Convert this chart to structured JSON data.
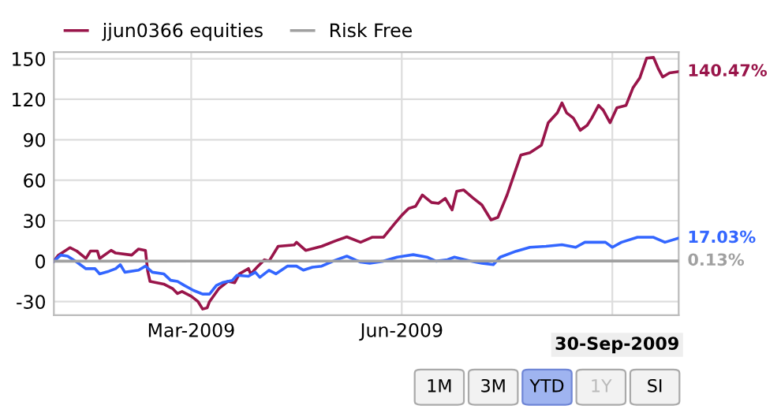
{
  "chart_data": {
    "type": "line",
    "xlim": [
      "2008-12-31",
      "2009-09-30"
    ],
    "ylim": [
      -40,
      155
    ],
    "xticks": [
      {
        "value": "2009-03-01",
        "label": "Mar-2009"
      },
      {
        "value": "2009-06-01",
        "label": "Jun-2009"
      },
      {
        "value": "2009-09-01",
        "label": null
      }
    ],
    "yticks": [
      -30,
      0,
      30,
      60,
      90,
      120,
      150
    ],
    "grid": true,
    "legend": "top",
    "line_style": "solid",
    "marker": "none",
    "series": [
      {
        "name": "jjun0366 equities",
        "color": "#99154a",
        "x": [
          "2008-12-31",
          "2009-01-02",
          "2009-01-07",
          "2009-01-10",
          "2009-01-14",
          "2009-01-16",
          "2009-01-19",
          "2009-01-20",
          "2009-01-25",
          "2009-01-27",
          "2009-02-03",
          "2009-02-06",
          "2009-02-09",
          "2009-02-10",
          "2009-02-11",
          "2009-02-17",
          "2009-02-21",
          "2009-02-23",
          "2009-02-25",
          "2009-03-01",
          "2009-03-04",
          "2009-03-06",
          "2009-03-08",
          "2009-03-09",
          "2009-03-13",
          "2009-03-17",
          "2009-03-20",
          "2009-03-22",
          "2009-03-26",
          "2009-03-27",
          "2009-03-30",
          "2009-04-02",
          "2009-04-04",
          "2009-04-08",
          "2009-04-15",
          "2009-04-16",
          "2009-04-20",
          "2009-04-27",
          "2009-05-03",
          "2009-05-08",
          "2009-05-14",
          "2009-05-19",
          "2009-05-24",
          "2009-05-29",
          "2009-06-01",
          "2009-06-04",
          "2009-06-07",
          "2009-06-10",
          "2009-06-14",
          "2009-06-17",
          "2009-06-20",
          "2009-06-23",
          "2009-06-25",
          "2009-06-28",
          "2009-07-02",
          "2009-07-06",
          "2009-07-10",
          "2009-07-13",
          "2009-07-17",
          "2009-07-20",
          "2009-07-23",
          "2009-07-27",
          "2009-08-01",
          "2009-08-04",
          "2009-08-08",
          "2009-08-10",
          "2009-08-12",
          "2009-08-15",
          "2009-08-18",
          "2009-08-21",
          "2009-08-23",
          "2009-08-26",
          "2009-08-28",
          "2009-08-31",
          "2009-09-03",
          "2009-09-07",
          "2009-09-10",
          "2009-09-13",
          "2009-09-16",
          "2009-09-19",
          "2009-09-21",
          "2009-09-23",
          "2009-09-26",
          "2009-09-30"
        ],
        "values": [
          0,
          4.5,
          10,
          7.5,
          2,
          7.5,
          7.5,
          2,
          8,
          6,
          4.5,
          9,
          8,
          -7.5,
          -15,
          -17,
          -20.5,
          -24,
          -22.5,
          -26,
          -30,
          -35.5,
          -34.5,
          -30,
          -20.5,
          -15,
          -16,
          -9.5,
          -5.5,
          -9.5,
          -4,
          1,
          0,
          11,
          12,
          14,
          8,
          11,
          15,
          18,
          14,
          17.7,
          17.7,
          28,
          34,
          39,
          40.6,
          49,
          43.5,
          42.8,
          46.5,
          38,
          51.7,
          52.8,
          47,
          41.7,
          30.6,
          32.5,
          49,
          63.8,
          78.6,
          80.4,
          86,
          102.6,
          110,
          117.3,
          110,
          106,
          97,
          100.7,
          106,
          115.5,
          112,
          102.6,
          113.7,
          115.5,
          128.4,
          135.8,
          150.5,
          151,
          143,
          136.5,
          139.5,
          140.47
        ]
      },
      {
        "color": "#3366ff",
        "x": [
          "2008-12-31",
          "2009-01-03",
          "2009-01-06",
          "2009-01-10",
          "2009-01-14",
          "2009-01-18",
          "2009-01-20",
          "2009-01-24",
          "2009-01-27",
          "2009-01-29",
          "2009-01-31",
          "2009-02-06",
          "2009-02-09",
          "2009-02-12",
          "2009-02-17",
          "2009-02-20",
          "2009-02-23",
          "2009-02-26",
          "2009-03-02",
          "2009-03-06",
          "2009-03-09",
          "2009-03-12",
          "2009-03-15",
          "2009-03-19",
          "2009-03-21",
          "2009-03-26",
          "2009-03-29",
          "2009-03-31",
          "2009-04-04",
          "2009-04-07",
          "2009-04-12",
          "2009-04-16",
          "2009-04-19",
          "2009-04-23",
          "2009-04-27",
          "2009-05-03",
          "2009-05-08",
          "2009-05-12",
          "2009-05-14",
          "2009-05-18",
          "2009-05-24",
          "2009-05-30",
          "2009-06-06",
          "2009-06-12",
          "2009-06-16",
          "2009-06-21",
          "2009-06-24",
          "2009-07-01",
          "2009-07-06",
          "2009-07-11",
          "2009-07-14",
          "2009-07-21",
          "2009-07-27",
          "2009-08-03",
          "2009-08-10",
          "2009-08-16",
          "2009-08-20",
          "2009-08-29",
          "2009-09-01",
          "2009-09-05",
          "2009-09-12",
          "2009-09-19",
          "2009-09-24",
          "2009-09-30"
        ],
        "values": [
          0,
          4.5,
          3.7,
          -0.7,
          -5.6,
          -5.6,
          -9.4,
          -7.5,
          -5.6,
          -2.6,
          -8.2,
          -6.7,
          -3.7,
          -8.2,
          -9.4,
          -14.2,
          -15,
          -18,
          -21.7,
          -24.4,
          -24.4,
          -18,
          -15.7,
          -14.2,
          -10.5,
          -11.2,
          -8.2,
          -12,
          -6.7,
          -9.4,
          -3.7,
          -3.7,
          -6.7,
          -4.5,
          -3.7,
          0.7,
          3.7,
          0.7,
          -0.7,
          -1.5,
          0,
          3,
          4.8,
          3,
          0,
          1.1,
          3,
          0,
          -1.5,
          -2.6,
          3,
          7.4,
          10.3,
          11,
          12.2,
          10.3,
          14,
          14,
          10.3,
          14,
          17.7,
          17.7,
          14,
          17.03
        ]
      },
      {
        "name": "Risk Free",
        "color": "#a0a0a0",
        "x": [
          "2008-12-31",
          "2009-09-30"
        ],
        "values": [
          0,
          0.13
        ]
      }
    ],
    "annotations": [
      {
        "text": "140.47%",
        "x": "2009-09-30",
        "y": 140.47
      },
      {
        "text": "17.03%",
        "x": "2009-09-30",
        "y": 17.03
      },
      {
        "text": "0.13%",
        "x": "2009-09-30",
        "y": 0.13
      },
      "30-Sep-2009",
      "1M",
      "3M",
      "YTD",
      "1Y",
      "SI"
    ]
  }
}
